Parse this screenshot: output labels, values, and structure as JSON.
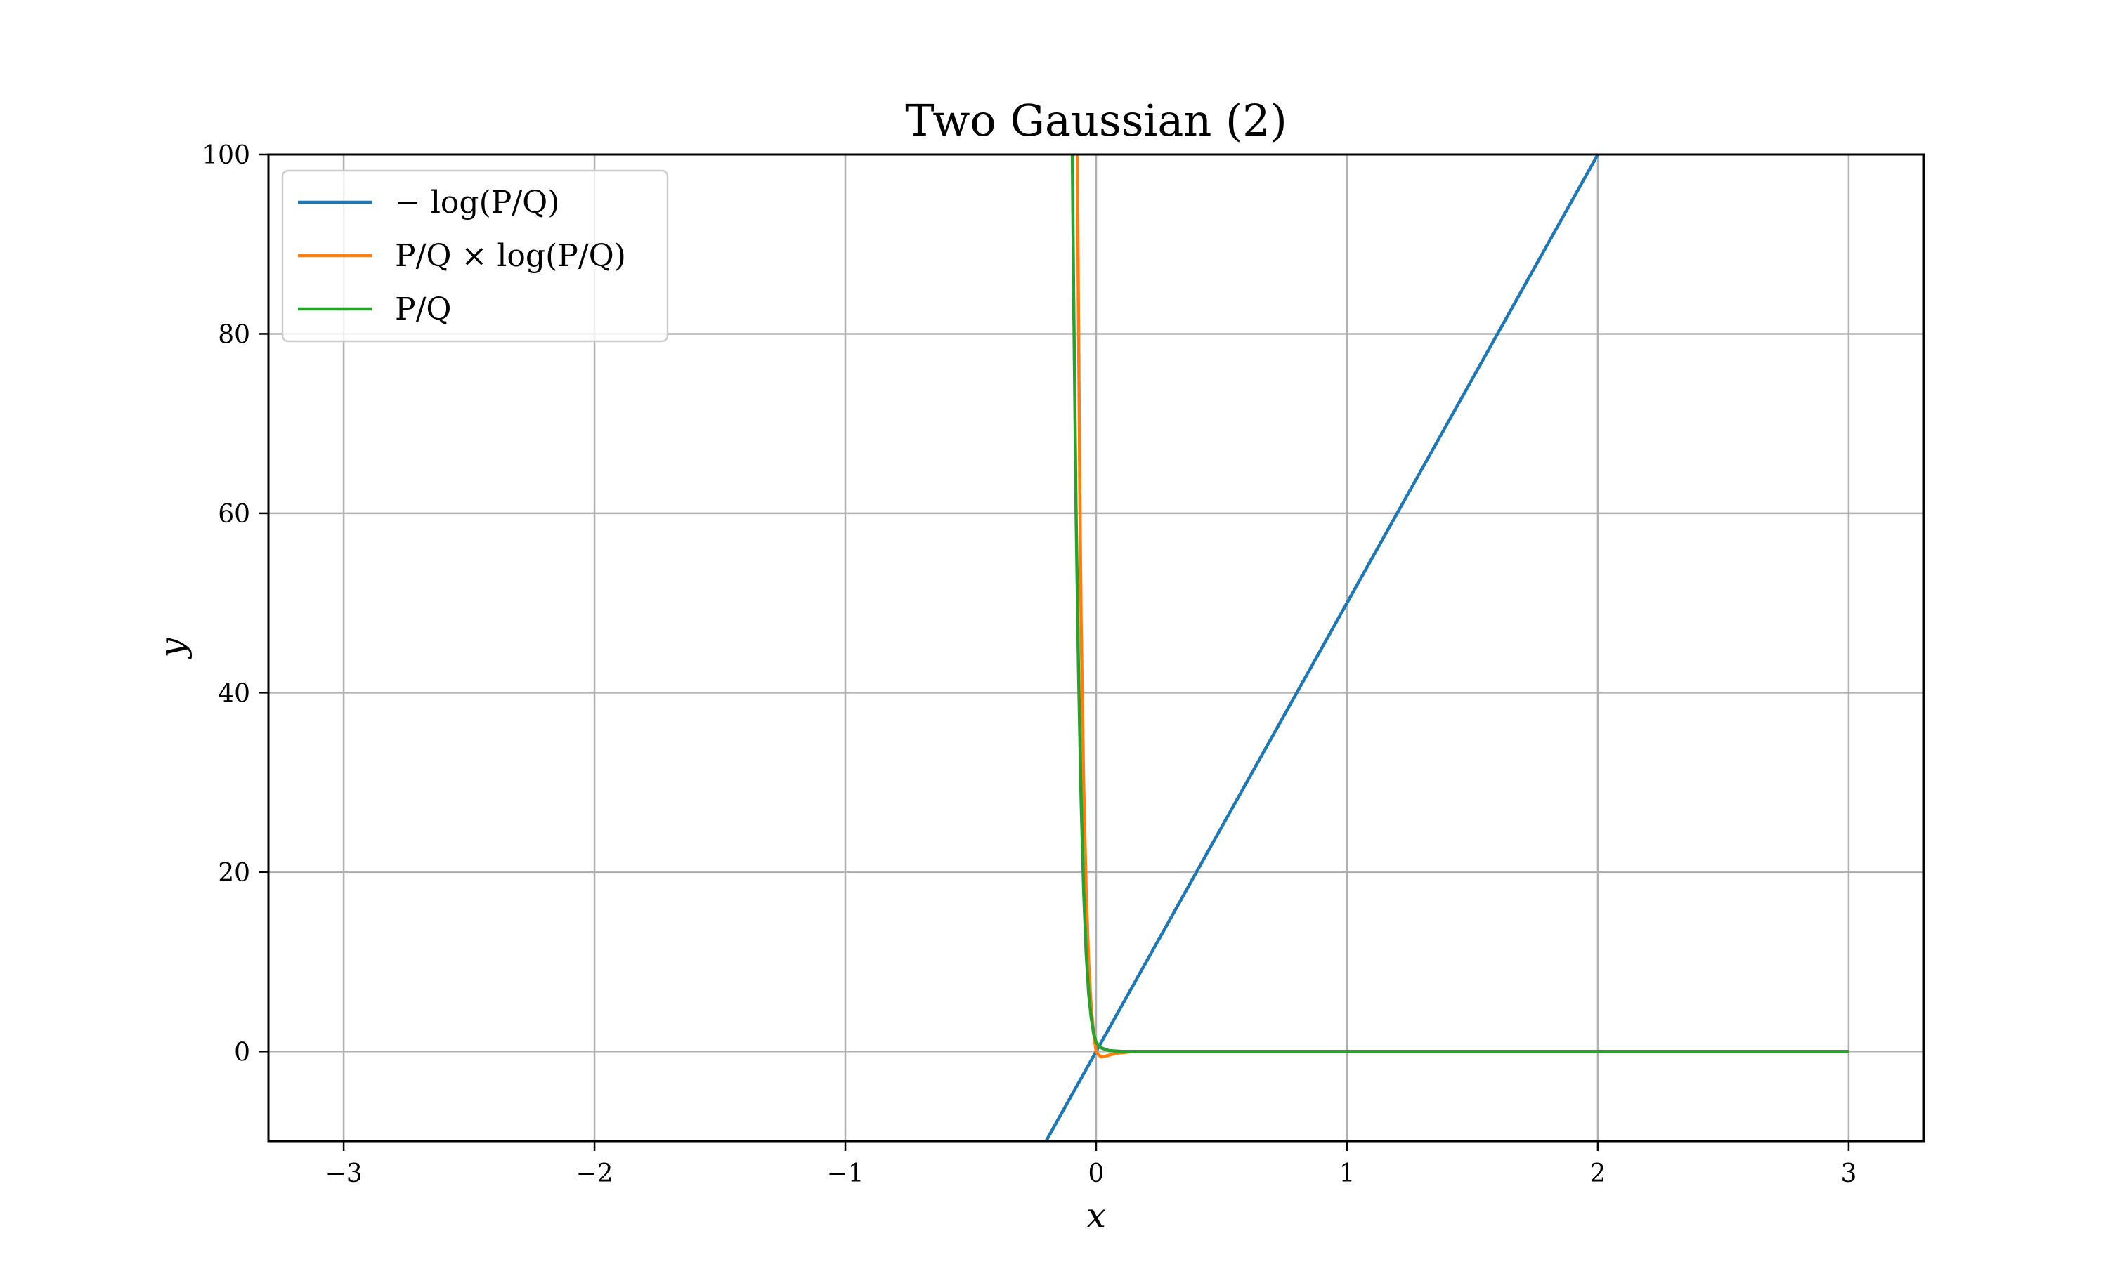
{
  "chart_data": {
    "type": "line",
    "title": "Two Gaussian (2)",
    "xlabel": "x",
    "ylabel": "y",
    "xlim": [
      -3.3,
      3.3
    ],
    "ylim": [
      -10,
      100
    ],
    "xticks": [
      -3,
      -2,
      -1,
      0,
      1,
      2,
      3
    ],
    "xtick_labels": [
      "−3",
      "−2",
      "−1",
      "0",
      "1",
      "2",
      "3"
    ],
    "yticks": [
      0,
      20,
      40,
      60,
      80,
      100
    ],
    "ytick_labels": [
      "0",
      "20",
      "40",
      "60",
      "80",
      "100"
    ],
    "grid": true,
    "legend_position": "top-left",
    "series": [
      {
        "name": "− log(P/Q)",
        "color": "#1f77b4",
        "x": [
          -0.2,
          0.0,
          0.5,
          1.0,
          1.5,
          2.0
        ],
        "y": [
          -10,
          0,
          25,
          50,
          75,
          100
        ]
      },
      {
        "name": "P/Q × log(P/Q)",
        "color": "#ff7f0e",
        "x": [
          -0.075,
          -0.07,
          -0.065,
          -0.06,
          -0.05,
          -0.04,
          -0.03,
          -0.02,
          -0.01,
          0.0,
          0.01,
          0.02,
          0.04,
          0.08,
          0.15,
          0.5,
          1.0,
          2.0,
          3.0
        ],
        "y": [
          100,
          80,
          62,
          48,
          30,
          18,
          10,
          5,
          2,
          0,
          -0.4,
          -0.6,
          -0.5,
          -0.2,
          0,
          0,
          0,
          0,
          0
        ],
        "extends_above_ylim": true
      },
      {
        "name": "P/Q",
        "color": "#2ca02c",
        "x": [
          -0.095,
          -0.09,
          -0.08,
          -0.07,
          -0.06,
          -0.05,
          -0.04,
          -0.03,
          -0.02,
          -0.01,
          0.0,
          0.02,
          0.05,
          0.1,
          0.5,
          1.0,
          2.0,
          3.0
        ],
        "y": [
          100,
          85,
          60,
          42,
          28,
          18,
          11,
          6.5,
          3.8,
          2.0,
          1.0,
          0.4,
          0.1,
          0,
          0,
          0,
          0,
          0
        ],
        "extends_above_ylim": true
      }
    ]
  }
}
